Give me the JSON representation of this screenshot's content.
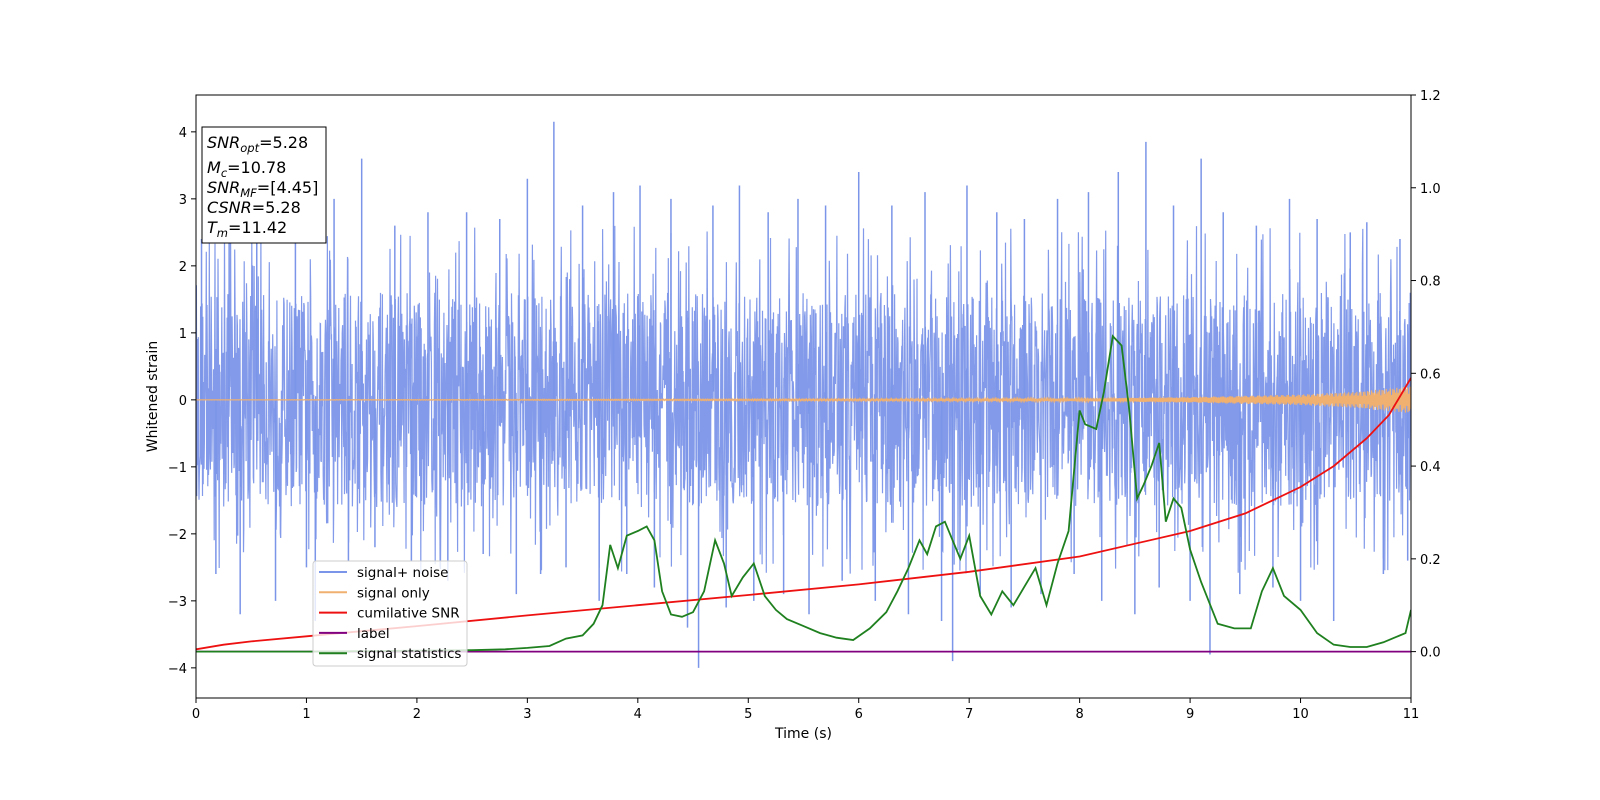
{
  "chart_data": {
    "type": "line",
    "title": "",
    "xlabel": "Time (s)",
    "ylabel": "Whitened strain",
    "xlim": [
      0,
      11
    ],
    "ylim": [
      -4.45,
      4.55
    ],
    "y2lim": [
      -0.1,
      1.2
    ],
    "grid": false,
    "legend_position": "lower-left",
    "x_ticks": [
      "0",
      "1",
      "2",
      "3",
      "4",
      "5",
      "6",
      "7",
      "8",
      "9",
      "10",
      "11"
    ],
    "y_ticks": [
      "4",
      "3",
      "2",
      "1",
      "0",
      "−1",
      "−2",
      "−3",
      "−4"
    ],
    "y2_ticks": [
      "0.0",
      "0.2",
      "0.4",
      "0.6",
      "0.8",
      "1.0",
      "1.2"
    ],
    "info_box": [
      {
        "symbol": "SNR",
        "sub": "opt",
        "value": "=5.28"
      },
      {
        "symbol": "M",
        "sub": "c",
        "value": "=10.78"
      },
      {
        "symbol": "SNR",
        "sub": "MF",
        "value": "=[4.45]"
      },
      {
        "symbol": "CSNR",
        "sub": "",
        "value": "=5.28"
      },
      {
        "symbol": "T",
        "sub": "m",
        "value": "=11.42"
      }
    ],
    "series": [
      {
        "name": "signal+ noise",
        "axis": "left",
        "color": "#7b95e8",
        "envelope": {
          "t": [
            0,
            0.5,
            1,
            1.5,
            2,
            2.5,
            3,
            3.5,
            4,
            4.5,
            5,
            5.5,
            6,
            6.5,
            7,
            7.5,
            8,
            8.5,
            9,
            9.5,
            10,
            10.5,
            11
          ],
          "upper": [
            1.6,
            1.6,
            1.6,
            1.6,
            1.6,
            1.6,
            1.6,
            1.6,
            1.6,
            1.6,
            1.6,
            1.6,
            1.6,
            1.6,
            1.6,
            1.6,
            1.6,
            1.6,
            1.6,
            1.6,
            1.6,
            1.6,
            1.6
          ],
          "lower": [
            -1.6,
            -1.6,
            -1.6,
            -1.6,
            -1.6,
            -1.6,
            -1.6,
            -1.6,
            -1.6,
            -1.6,
            -1.6,
            -1.6,
            -1.6,
            -1.6,
            -1.6,
            -1.6,
            -1.6,
            -1.6,
            -1.6,
            -1.6,
            -1.6,
            -1.6,
            -1.6
          ]
        },
        "spikes": [
          [
            0.05,
            2.4
          ],
          [
            0.18,
            -2.6
          ],
          [
            0.3,
            2.5
          ],
          [
            0.4,
            -3.2
          ],
          [
            0.55,
            2.6
          ],
          [
            0.72,
            -3.0
          ],
          [
            0.9,
            2.7
          ],
          [
            1.0,
            -2.5
          ],
          [
            1.08,
            -3.3
          ],
          [
            1.25,
            3.0
          ],
          [
            1.38,
            -2.4
          ],
          [
            1.5,
            3.6
          ],
          [
            1.62,
            -2.2
          ],
          [
            1.8,
            2.6
          ],
          [
            1.95,
            -2.4
          ],
          [
            2.1,
            2.8
          ],
          [
            2.28,
            -2.7
          ],
          [
            2.45,
            2.8
          ],
          [
            2.6,
            -2.3
          ],
          [
            2.75,
            2.7
          ],
          [
            2.9,
            -2.9
          ],
          [
            3.0,
            3.3
          ],
          [
            3.12,
            -2.6
          ],
          [
            3.24,
            4.15
          ],
          [
            3.35,
            -2.5
          ],
          [
            3.5,
            2.9
          ],
          [
            3.65,
            -3.0
          ],
          [
            3.78,
            3.1
          ],
          [
            3.9,
            -2.6
          ],
          [
            4.02,
            3.2
          ],
          [
            4.15,
            -2.8
          ],
          [
            4.3,
            3.0
          ],
          [
            4.45,
            -3.4
          ],
          [
            4.55,
            -4.0
          ],
          [
            4.68,
            2.9
          ],
          [
            4.8,
            -3.1
          ],
          [
            4.92,
            3.2
          ],
          [
            5.05,
            -3.0
          ],
          [
            5.18,
            2.8
          ],
          [
            5.32,
            -2.9
          ],
          [
            5.45,
            3.0
          ],
          [
            5.55,
            -3.2
          ],
          [
            5.7,
            2.9
          ],
          [
            5.85,
            -2.7
          ],
          [
            6.0,
            3.4
          ],
          [
            6.15,
            -3.0
          ],
          [
            6.3,
            2.9
          ],
          [
            6.45,
            -3.2
          ],
          [
            6.6,
            3.1
          ],
          [
            6.75,
            -3.3
          ],
          [
            6.85,
            -3.9
          ],
          [
            6.98,
            3.2
          ],
          [
            7.1,
            -2.9
          ],
          [
            7.25,
            2.8
          ],
          [
            7.38,
            -3.1
          ],
          [
            7.5,
            2.7
          ],
          [
            7.65,
            -2.9
          ],
          [
            7.8,
            3.0
          ],
          [
            7.95,
            -2.6
          ],
          [
            8.08,
            3.1
          ],
          [
            8.2,
            -3.0
          ],
          [
            8.35,
            3.4
          ],
          [
            8.5,
            -3.2
          ],
          [
            8.6,
            3.85
          ],
          [
            8.72,
            -2.8
          ],
          [
            8.85,
            2.9
          ],
          [
            9.0,
            -3.0
          ],
          [
            9.1,
            3.6
          ],
          [
            9.18,
            -3.8
          ],
          [
            9.3,
            2.8
          ],
          [
            9.45,
            -2.9
          ],
          [
            9.6,
            2.6
          ],
          [
            9.75,
            -2.8
          ],
          [
            9.9,
            3.0
          ],
          [
            10.0,
            -3.0
          ],
          [
            10.15,
            2.7
          ],
          [
            10.3,
            -3.3
          ],
          [
            10.45,
            2.5
          ],
          [
            10.6,
            2.65
          ],
          [
            10.75,
            -2.6
          ],
          [
            10.9,
            2.4
          ],
          [
            10.97,
            -2.4
          ]
        ]
      },
      {
        "name": "signal only",
        "axis": "left",
        "color": "#f0b070",
        "chirp": {
          "t": [
            0,
            8,
            9,
            10,
            10.5,
            11
          ],
          "amplitude": [
            0.0,
            0.02,
            0.04,
            0.08,
            0.12,
            0.2
          ]
        }
      },
      {
        "name": "cumilative SNR",
        "axis": "right",
        "color": "#ee1111",
        "x": [
          0,
          0.25,
          0.5,
          1,
          2,
          3,
          4,
          5,
          6,
          7,
          8,
          9,
          9.5,
          10,
          10.3,
          10.6,
          10.8,
          11
        ],
        "y": [
          0.005,
          0.015,
          0.022,
          0.033,
          0.055,
          0.078,
          0.1,
          0.122,
          0.145,
          0.172,
          0.205,
          0.26,
          0.298,
          0.355,
          0.4,
          0.46,
          0.51,
          0.59
        ]
      },
      {
        "name": "label",
        "axis": "right",
        "color": "#800080",
        "x": [
          0,
          11
        ],
        "y": [
          0.0,
          0.0
        ]
      },
      {
        "name": "signal statistics",
        "axis": "right",
        "color": "#1f801f",
        "x": [
          0,
          0.5,
          1,
          1.5,
          2,
          2.5,
          2.8,
          3,
          3.2,
          3.35,
          3.5,
          3.6,
          3.68,
          3.75,
          3.82,
          3.9,
          4.0,
          4.08,
          4.15,
          4.22,
          4.3,
          4.4,
          4.5,
          4.6,
          4.7,
          4.78,
          4.85,
          4.95,
          5.05,
          5.15,
          5.25,
          5.35,
          5.5,
          5.65,
          5.8,
          5.95,
          6.1,
          6.25,
          6.35,
          6.45,
          6.55,
          6.62,
          6.7,
          6.78,
          6.85,
          6.92,
          7.0,
          7.1,
          7.2,
          7.3,
          7.4,
          7.5,
          7.6,
          7.7,
          7.8,
          7.9,
          8.0,
          8.05,
          8.15,
          8.22,
          8.3,
          8.38,
          8.45,
          8.52,
          8.58,
          8.65,
          8.72,
          8.78,
          8.85,
          8.92,
          9.0,
          9.1,
          9.25,
          9.4,
          9.55,
          9.65,
          9.75,
          9.85,
          10.0,
          10.15,
          10.3,
          10.45,
          10.6,
          10.75,
          10.85,
          10.95,
          11.0
        ],
        "y": [
          0.0,
          0.0,
          0.0,
          0.001,
          0.002,
          0.003,
          0.005,
          0.008,
          0.012,
          0.028,
          0.035,
          0.06,
          0.1,
          0.23,
          0.18,
          0.25,
          0.26,
          0.27,
          0.24,
          0.13,
          0.08,
          0.075,
          0.085,
          0.13,
          0.24,
          0.19,
          0.12,
          0.16,
          0.19,
          0.12,
          0.09,
          0.07,
          0.055,
          0.04,
          0.03,
          0.025,
          0.05,
          0.085,
          0.13,
          0.18,
          0.24,
          0.21,
          0.27,
          0.28,
          0.24,
          0.2,
          0.25,
          0.12,
          0.08,
          0.13,
          0.1,
          0.14,
          0.18,
          0.1,
          0.19,
          0.26,
          0.52,
          0.49,
          0.48,
          0.56,
          0.68,
          0.66,
          0.52,
          0.33,
          0.36,
          0.4,
          0.45,
          0.28,
          0.33,
          0.31,
          0.22,
          0.15,
          0.06,
          0.05,
          0.05,
          0.13,
          0.18,
          0.12,
          0.09,
          0.04,
          0.015,
          0.01,
          0.01,
          0.02,
          0.03,
          0.04,
          0.09
        ]
      }
    ]
  }
}
